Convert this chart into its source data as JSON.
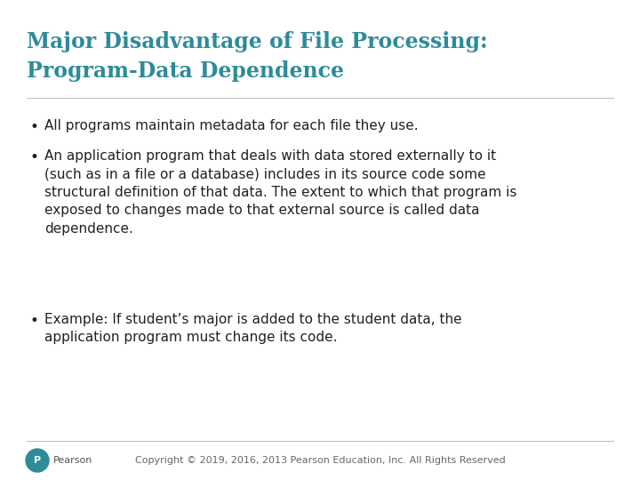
{
  "title_line1": "Major Disadvantage of File Processing:",
  "title_line2": "Program-Data Dependence",
  "title_color": "#2E8B9A",
  "bg_color": "#FFFFFF",
  "bullet1": "All programs maintain metadata for each file they use.",
  "bullet2_line1": "An application program that deals with data stored externally to it",
  "bullet2_line2": "(such as in a file or a database) includes in its source code some",
  "bullet2_line3": "structural definition of that data. The extent to which that program is",
  "bullet2_line4": "exposed to changes made to that external source is called data",
  "bullet2_line5": "dependence.",
  "bullet3_line1": "Example: If student’s major is added to the student data, the",
  "bullet3_line2": "application program must change its code.",
  "footer": "Copyright © 2019, 2016, 2013 Pearson Education, Inc. All Rights Reserved",
  "footer_color": "#666666",
  "bullet_color": "#222222",
  "title_fontsize": 17,
  "body_fontsize": 11,
  "footer_fontsize": 8
}
